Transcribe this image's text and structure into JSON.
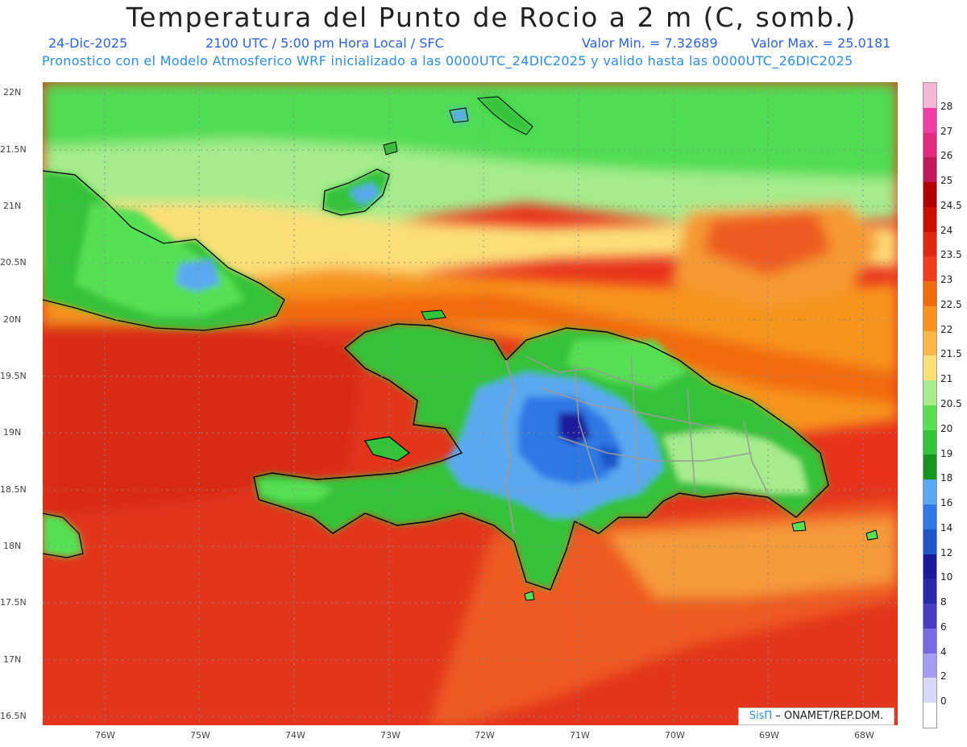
{
  "header": {
    "title": "Temperatura del Punto de Rocio a 2 m (C, somb.)",
    "date": "24-Dic-2025",
    "time": "2100 UTC / 5:00 pm Hora Local / SFC",
    "min_value": "Valor Min. = 7.32689",
    "max_value": "Valor Max. = 25.0181",
    "model_info": "Pronostico con el Modelo Atmosferico WRF inicializado a las 0000UTC_24DIC2025 y valido hasta las  0000UTC_26DIC2025"
  },
  "axes": {
    "lon_labels": [
      "76W",
      "75W",
      "74W",
      "73W",
      "72W",
      "71W",
      "70W",
      "69W",
      "68W"
    ],
    "lat_labels": [
      "22N",
      "21.5N",
      "21N",
      "20.5N",
      "20N",
      "19.5N",
      "19N",
      "18.5N",
      "18N",
      "17.5N",
      "17N",
      "16.5N"
    ]
  },
  "colorbar": {
    "labels": [
      "28",
      "27",
      "26",
      "25",
      "24.5",
      "24",
      "23.5",
      "23",
      "22.5",
      "22",
      "21.5",
      "21",
      "20.5",
      "20",
      "19",
      "18",
      "16",
      "14",
      "12",
      "10",
      "8",
      "6",
      "4",
      "2",
      "0"
    ],
    "colors": [
      "#f5b6d8",
      "#ee3ea6",
      "#e02b7e",
      "#c2185b",
      "#b30000",
      "#cc1000",
      "#dd2a10",
      "#ee3e1e",
      "#f26a10",
      "#f7931e",
      "#f9b74a",
      "#fbe07a",
      "#a8ec8e",
      "#57e052",
      "#34c23a",
      "#16961c",
      "#5aa8f0",
      "#2f78e6",
      "#1f55c8",
      "#1a1a9c",
      "#2a2aa8",
      "#4a3cc0",
      "#7a6ae0",
      "#a89cf0",
      "#d9d6f8",
      "#ffffff"
    ]
  },
  "credit": {
    "logo_text": "SisΠ",
    "org_text": " – ONAMET/REP.DOM."
  }
}
